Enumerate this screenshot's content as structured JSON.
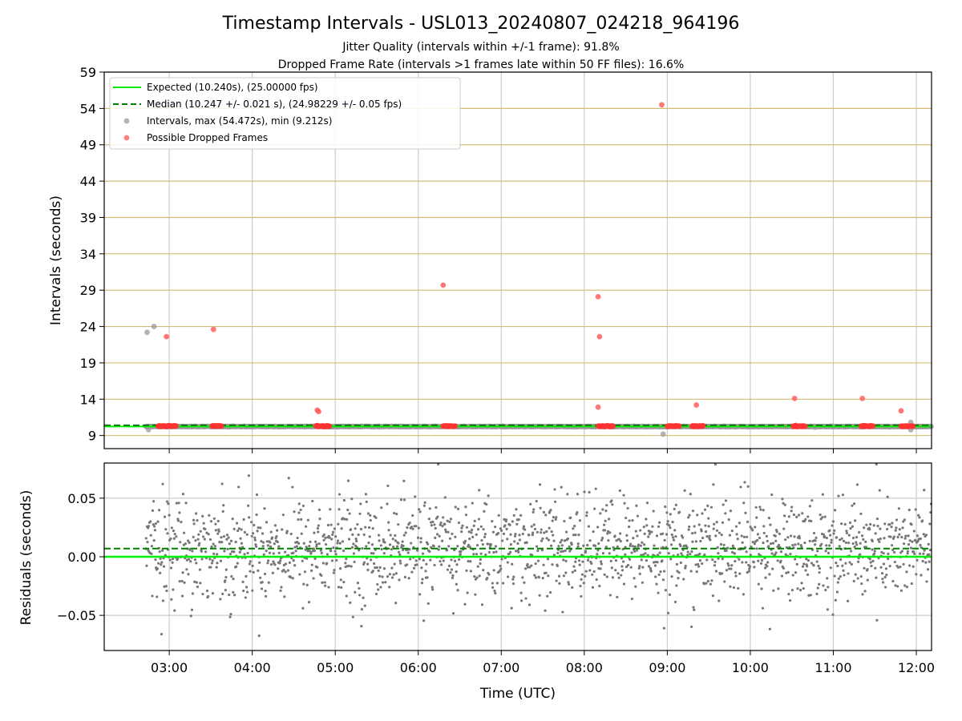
{
  "figure": {
    "title": "Timestamp Intervals - USL013_20240807_024218_964196",
    "subtitle_1": "Jitter Quality (intervals within +/-1 frame): 91.8%",
    "subtitle_2": "Dropped Frame Rate (intervals >1 frames late within 50 FF files): 16.6%"
  },
  "chart_data": [
    {
      "type": "scatter",
      "name": "intervals-panel",
      "ylabel": "Intervals (seconds)",
      "xlabel": "",
      "ylim": [
        7.2,
        59.0
      ],
      "y_ticks": [
        9,
        14,
        19,
        24,
        29,
        34,
        39,
        44,
        49,
        54,
        59
      ],
      "y_tick_labels": [
        "9",
        "14",
        "19",
        "24",
        "29",
        "34",
        "39",
        "44",
        "49",
        "54",
        "59"
      ],
      "x_range_hours": [
        "02:13",
        "12:11"
      ],
      "grid": true,
      "legend_position": "top-left",
      "legend": [
        {
          "label": "Expected (10.240s), (25.00000 fps)",
          "kind": "solid-line",
          "color": "#00ee00"
        },
        {
          "label": "Median (10.247 +/- 0.021 s), (24.98229 +/- 0.05 fps)",
          "kind": "dashed-line",
          "color": "#008000"
        },
        {
          "label": "Intervals, max (54.472s), min (9.212s)",
          "kind": "marker",
          "color": "#999999"
        },
        {
          "label": "Possible Dropped Frames",
          "kind": "marker",
          "color": "#ff5555"
        }
      ],
      "expected_line": 10.24,
      "median_line": 10.247,
      "series": [
        {
          "name": "Intervals",
          "color": "#999999",
          "baseline_range": [
            "02:43",
            "12:11"
          ],
          "baseline_value": 10.24,
          "outliers": [
            {
              "x": "02:44",
              "y": 23.2
            },
            {
              "x": "02:49",
              "y": 24.0
            },
            {
              "x": "02:45",
              "y": 9.8
            },
            {
              "x": "08:57",
              "y": 9.2
            },
            {
              "x": "11:56",
              "y": 9.8
            },
            {
              "x": "11:56",
              "y": 10.8
            }
          ]
        },
        {
          "name": "Possible Dropped Frames",
          "color": "#ff5555",
          "clusters": [
            [
              "02:52",
              "03:05"
            ],
            [
              "03:31",
              "03:38"
            ],
            [
              "04:46",
              "04:56"
            ],
            [
              "06:18",
              "06:27"
            ],
            [
              "08:10",
              "08:21"
            ],
            [
              "09:00",
              "09:09"
            ],
            [
              "09:18",
              "09:26"
            ],
            [
              "10:31",
              "10:40"
            ],
            [
              "11:20",
              "11:29"
            ],
            [
              "11:49",
              "11:58"
            ]
          ],
          "cluster_value": 10.3,
          "points": [
            {
              "x": "02:58",
              "y": 22.6
            },
            {
              "x": "03:32",
              "y": 23.6
            },
            {
              "x": "04:47",
              "y": 12.5
            },
            {
              "x": "04:48",
              "y": 12.3
            },
            {
              "x": "06:18",
              "y": 29.7
            },
            {
              "x": "08:10",
              "y": 28.1
            },
            {
              "x": "08:11",
              "y": 22.6
            },
            {
              "x": "08:10",
              "y": 12.9
            },
            {
              "x": "08:56",
              "y": 54.5
            },
            {
              "x": "09:21",
              "y": 13.2
            },
            {
              "x": "10:32",
              "y": 14.1
            },
            {
              "x": "11:21",
              "y": 14.1
            },
            {
              "x": "11:49",
              "y": 12.4
            }
          ]
        }
      ]
    },
    {
      "type": "scatter",
      "name": "residuals-panel",
      "ylabel": "Residuals (seconds)",
      "xlabel": "Time (UTC)",
      "ylim": [
        -0.08,
        0.08
      ],
      "y_ticks": [
        -0.05,
        0.0,
        0.05
      ],
      "y_tick_labels": [
        "−0.05",
        "0.00",
        "0.05"
      ],
      "x_ticks": [
        "03:00",
        "04:00",
        "05:00",
        "06:00",
        "07:00",
        "08:00",
        "09:00",
        "10:00",
        "11:00",
        "12:00"
      ],
      "x_range_hours": [
        "02:13",
        "12:11"
      ],
      "grid": true,
      "expected_line": 0.0,
      "median_line": 0.007,
      "series": [
        {
          "name": "Residuals",
          "color": "#777777",
          "x_range": [
            "02:43",
            "12:11"
          ],
          "spread": 0.022,
          "approx_point_count": 1800
        }
      ]
    }
  ]
}
